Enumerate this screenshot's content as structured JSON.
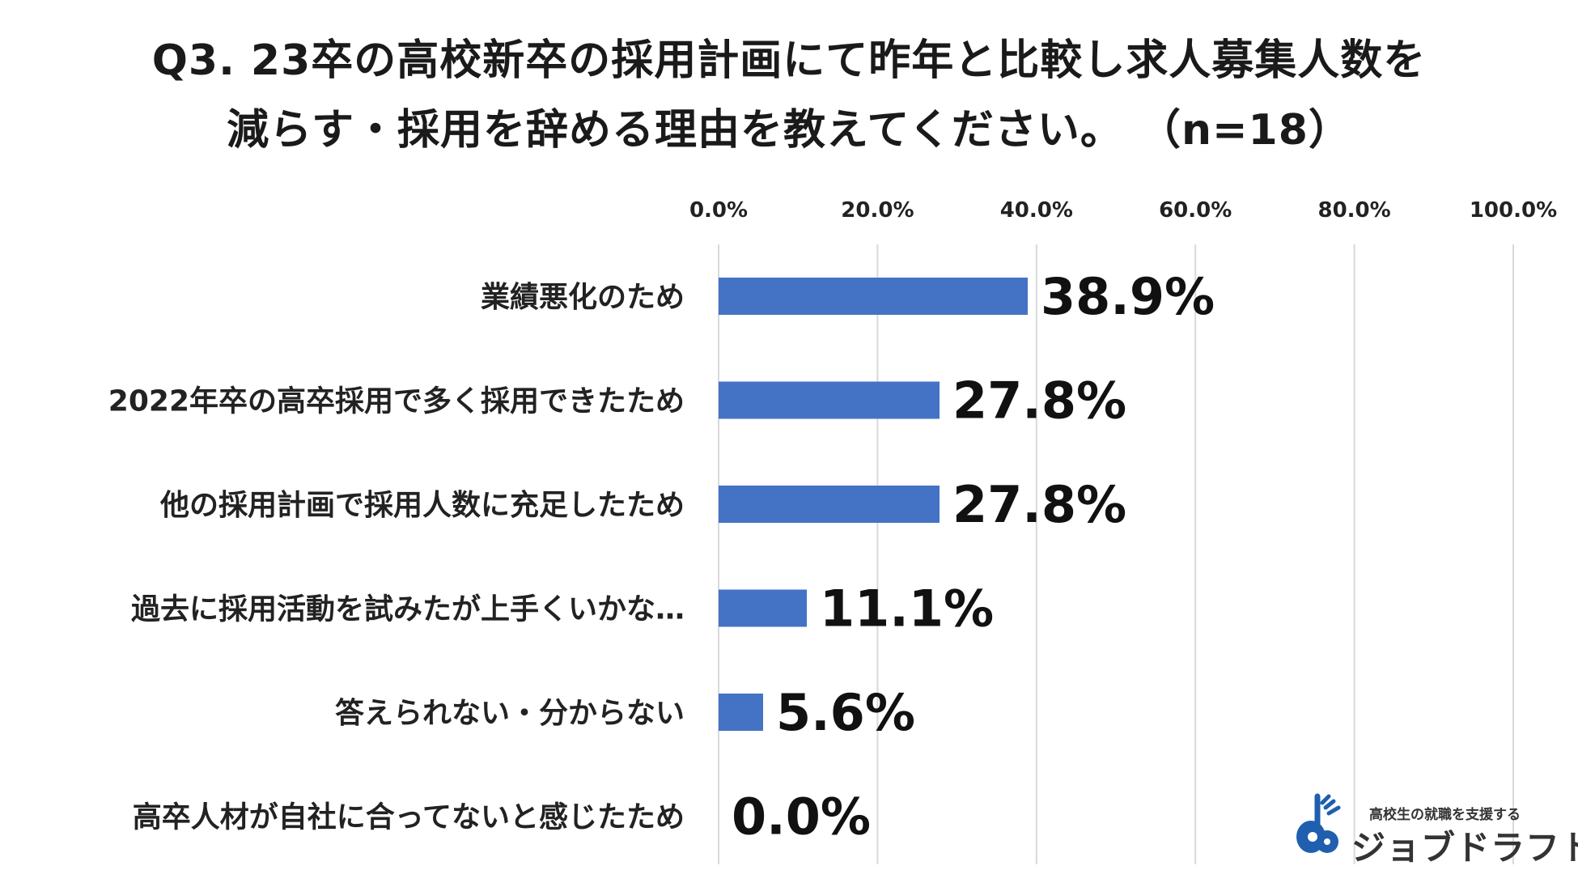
{
  "title_line1": "Q3. 23卒の高校新卒の採用計画にて昨年と比較し求人募集人数を",
  "title_line2": "減らす・採用を辞める理由を教えてください。 （n=18）",
  "chart_data": {
    "type": "bar",
    "orientation": "horizontal",
    "title": "Q3. 23卒の高校新卒の採用計画にて昨年と比較し求人募集人数を減らす・採用を辞める理由を教えてください。 （n=18）",
    "categories": [
      "業績悪化のため",
      "2022年卒の高卒採用で多く採用できたため",
      "他の採用計画で採用人数に充足したため",
      "過去に採用活動を試みたが上手くいかな…",
      "答えられない・分からない",
      "高卒人材が自社に合ってないと感じたため"
    ],
    "values": [
      38.9,
      27.8,
      27.8,
      11.1,
      5.6,
      0.0
    ],
    "value_labels": [
      "38.9%",
      "27.8%",
      "27.8%",
      "11.1%",
      "5.6%",
      "0.0%"
    ],
    "xlim": [
      0,
      100
    ],
    "x_ticks": [
      0,
      20,
      40,
      60,
      80,
      100
    ],
    "x_tick_labels": [
      "0.0%",
      "20.0%",
      "40.0%",
      "60.0%",
      "80.0%",
      "100.0%"
    ],
    "x_axis_position": "top",
    "grid": true,
    "bar_color": "#4472C4",
    "gridline_color": "#D9D9D9"
  },
  "logo": {
    "tagline": "高校生の就職を支援する",
    "name": "ジョブドラフト",
    "icon": "guitar-note-logo-icon",
    "accent_color": "#1F5FAE"
  }
}
